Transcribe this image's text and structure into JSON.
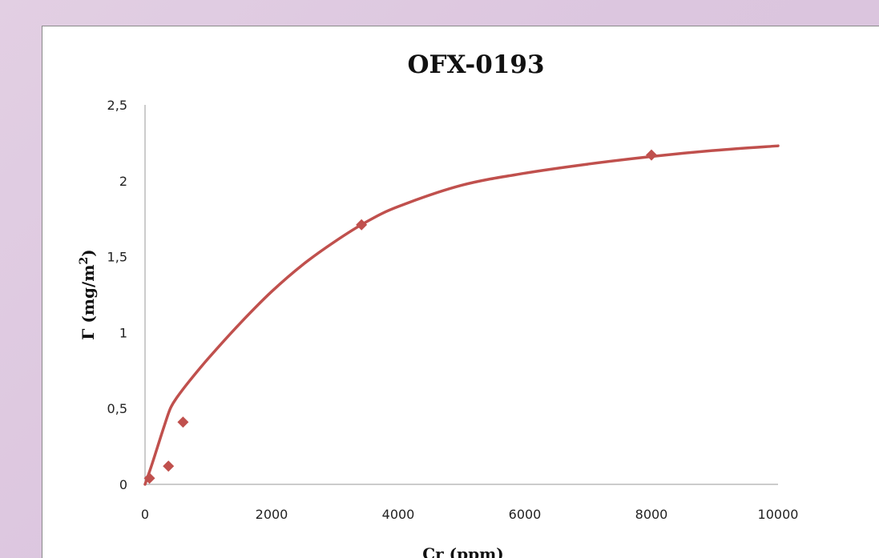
{
  "chart_data": {
    "type": "scatter",
    "title": "OFX-0193",
    "xlabel": "Cr (ppm)",
    "ylabel_base": "Γ (mg/m",
    "ylabel_sup": "2",
    "ylabel_close": ")",
    "xlim": [
      0,
      10000
    ],
    "ylim": [
      0,
      2.5
    ],
    "x_ticks": [
      0,
      2000,
      4000,
      6000,
      8000,
      10000
    ],
    "x_tick_labels": [
      "0",
      "2000",
      "4000",
      "6000",
      "8000",
      "10000"
    ],
    "y_ticks": [
      0,
      0.5,
      1,
      1.5,
      2,
      2.5
    ],
    "y_tick_labels": [
      "0",
      "0,5",
      "1",
      "1,5",
      "2",
      "2,5"
    ],
    "grid": false,
    "legend": false,
    "series": [
      {
        "marker": "diamond",
        "color": "#c0504d",
        "x": [
          70,
          370,
          600,
          3420,
          8000
        ],
        "y": [
          0.04,
          0.12,
          0.41,
          1.71,
          2.17
        ]
      }
    ],
    "fit_curve": {
      "color": "#c0504d",
      "x": [
        0,
        100,
        200,
        300,
        400,
        500,
        700,
        1000,
        1500,
        2000,
        2500,
        3000,
        3500,
        4000,
        5000,
        6000,
        7000,
        8000,
        9000,
        10000
      ],
      "y": [
        0,
        0.12,
        0.25,
        0.38,
        0.5,
        0.57,
        0.68,
        0.83,
        1.06,
        1.27,
        1.45,
        1.6,
        1.73,
        1.83,
        1.97,
        2.05,
        2.11,
        2.16,
        2.2,
        2.23
      ]
    }
  }
}
